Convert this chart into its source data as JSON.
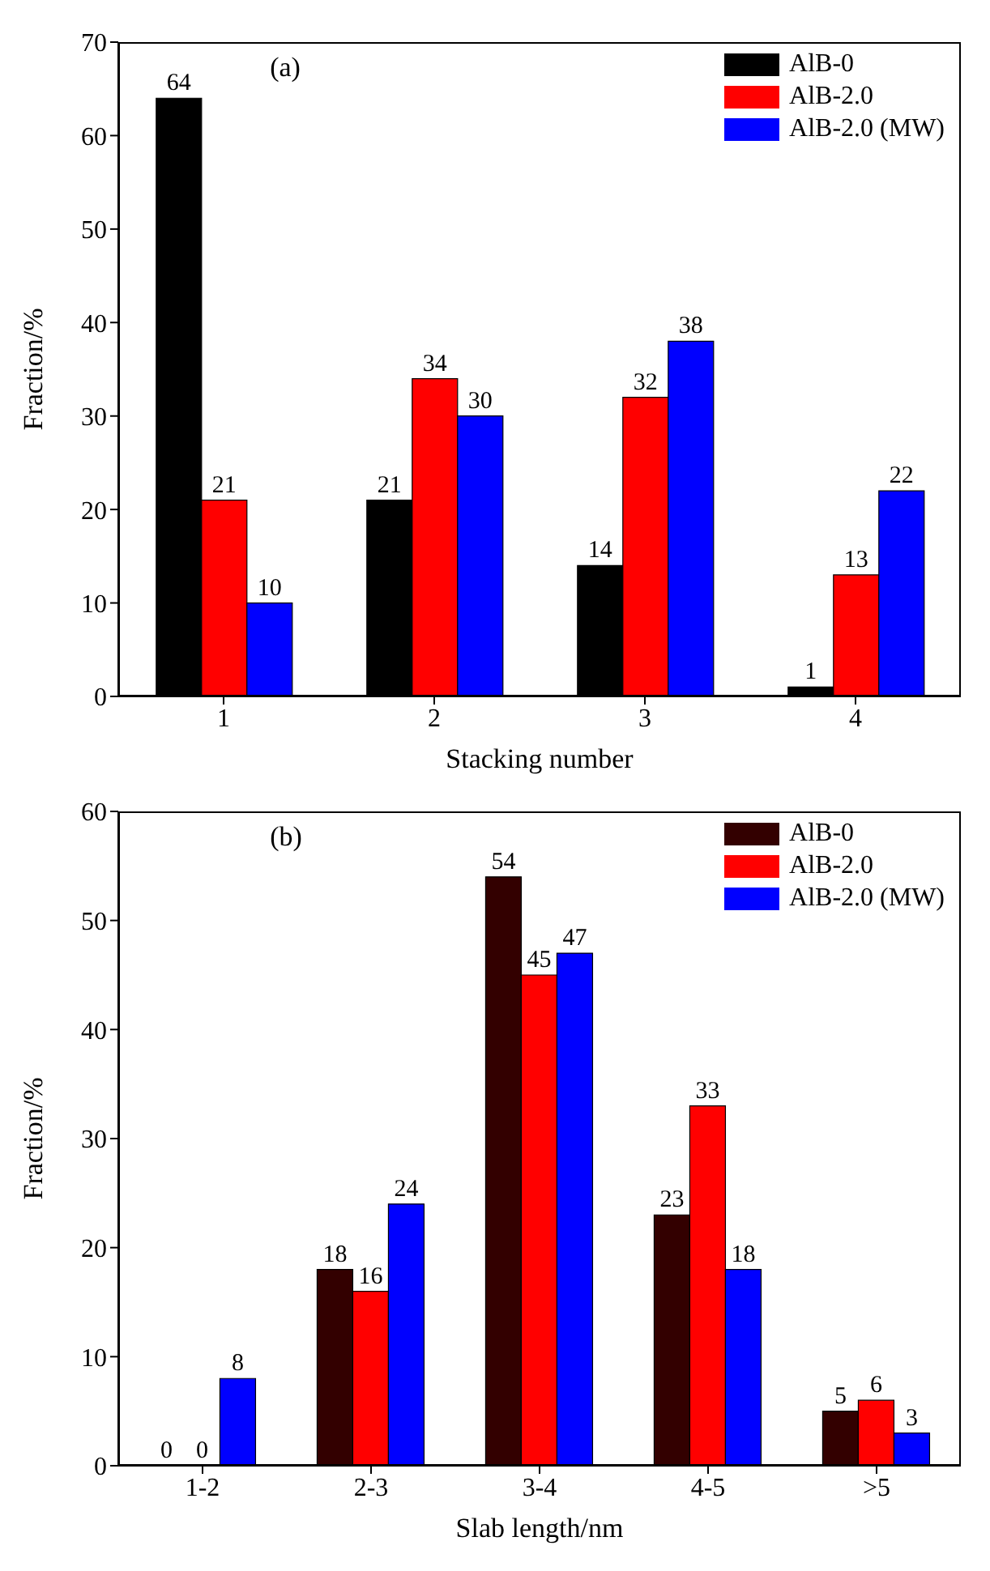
{
  "chart_data": [
    {
      "type": "bar",
      "categories": [
        "1",
        "2",
        "3",
        "4"
      ],
      "xlabel": "Stacking number",
      "ylabel": "Fraction/%",
      "ylim": [
        0,
        70
      ],
      "yticks": [
        0,
        10,
        20,
        30,
        40,
        50,
        60,
        70
      ],
      "grid": false,
      "legend": "top right",
      "data_labels": true,
      "annotations": [
        "(a)"
      ],
      "series": [
        {
          "name": "AlB-0",
          "color": "#000000",
          "values": [
            64,
            21,
            14,
            1
          ]
        },
        {
          "name": "AlB-2.0",
          "color": "#ff0000",
          "values": [
            21,
            34,
            32,
            13
          ]
        },
        {
          "name": "AlB-2.0 (MW)",
          "color": "#0000ff",
          "values": [
            10,
            30,
            38,
            22
          ]
        }
      ]
    },
    {
      "type": "bar",
      "categories": [
        "1-2",
        "2-3",
        "3-4",
        "4-5",
        ">5"
      ],
      "xlabel": "Slab length/nm",
      "ylabel": "Fraction/%",
      "ylim": [
        0,
        60
      ],
      "yticks": [
        0,
        10,
        20,
        30,
        40,
        50,
        60
      ],
      "grid": false,
      "legend": "top right",
      "data_labels": true,
      "annotations": [
        "(b)"
      ],
      "series": [
        {
          "name": "AlB-0",
          "color": "#330000",
          "values": [
            0,
            18,
            54,
            23,
            5
          ]
        },
        {
          "name": "AlB-2.0",
          "color": "#ff0000",
          "values": [
            0,
            16,
            45,
            33,
            6
          ]
        },
        {
          "name": "AlB-2.0 (MW)",
          "color": "#0000ff",
          "values": [
            8,
            24,
            47,
            18,
            3
          ]
        }
      ]
    }
  ]
}
